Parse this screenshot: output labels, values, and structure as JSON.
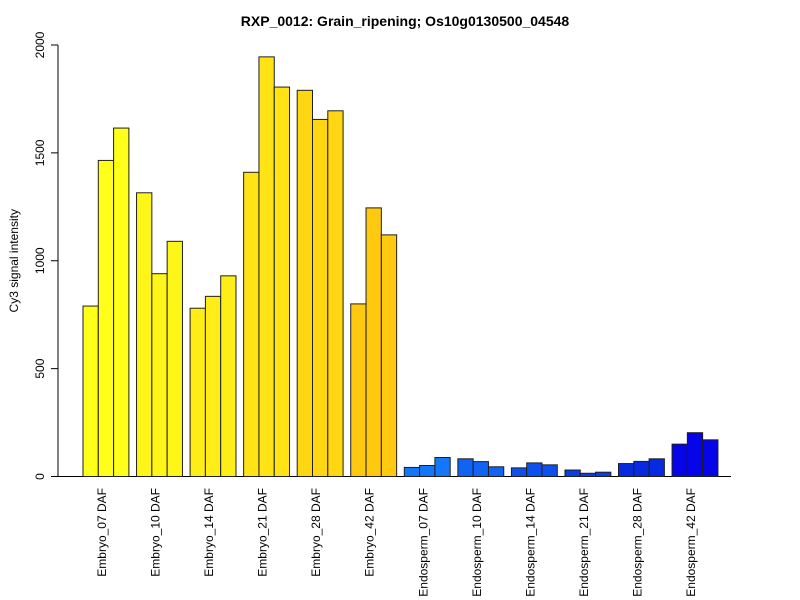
{
  "chart_data": {
    "type": "bar",
    "title": "RXP_0012: Grain_ripening; Os10g0130500_04548",
    "xlabel": "",
    "ylabel": "Cy3 signal intensity",
    "ylim": [
      0,
      2000
    ],
    "yticks": [
      0,
      500,
      1000,
      1500,
      2000
    ],
    "grid": false,
    "legend": "none",
    "bars_per_group": 3,
    "bar_border_color": "#1f1f1f",
    "axis_color": "#000000",
    "groups": [
      {
        "label": "Embryo_07 DAF",
        "color": "#FFFF1A",
        "values": [
          790,
          1465,
          1615
        ]
      },
      {
        "label": "Embryo_10 DAF",
        "color": "#FFF619",
        "values": [
          1315,
          940,
          1090
        ]
      },
      {
        "label": "Embryo_14 DAF",
        "color": "#FFED17",
        "values": [
          780,
          835,
          930
        ]
      },
      {
        "label": "Embryo_21 DAF",
        "color": "#FFE314",
        "values": [
          1410,
          1945,
          1805
        ]
      },
      {
        "label": "Embryo_28 DAF",
        "color": "#FFD612",
        "values": [
          1790,
          1655,
          1695
        ]
      },
      {
        "label": "Embryo_42 DAF",
        "color": "#FFC90F",
        "values": [
          800,
          1245,
          1120
        ]
      },
      {
        "label": "Endosperm_07 DAF",
        "color": "#1477FA",
        "values": [
          42,
          51,
          88
        ]
      },
      {
        "label": "Endosperm_10 DAF",
        "color": "#1163F4",
        "values": [
          82,
          69,
          45
        ]
      },
      {
        "label": "Endosperm_14 DAF",
        "color": "#0E50EE",
        "values": [
          40,
          63,
          54
        ]
      },
      {
        "label": "Endosperm_21 DAF",
        "color": "#0A3CE8",
        "values": [
          30,
          15,
          20
        ]
      },
      {
        "label": "Endosperm_28 DAF",
        "color": "#0729E2",
        "values": [
          60,
          70,
          82
        ]
      },
      {
        "label": "Endosperm_42 DAF",
        "color": "#0505E8",
        "values": [
          150,
          203,
          170
        ]
      }
    ]
  }
}
